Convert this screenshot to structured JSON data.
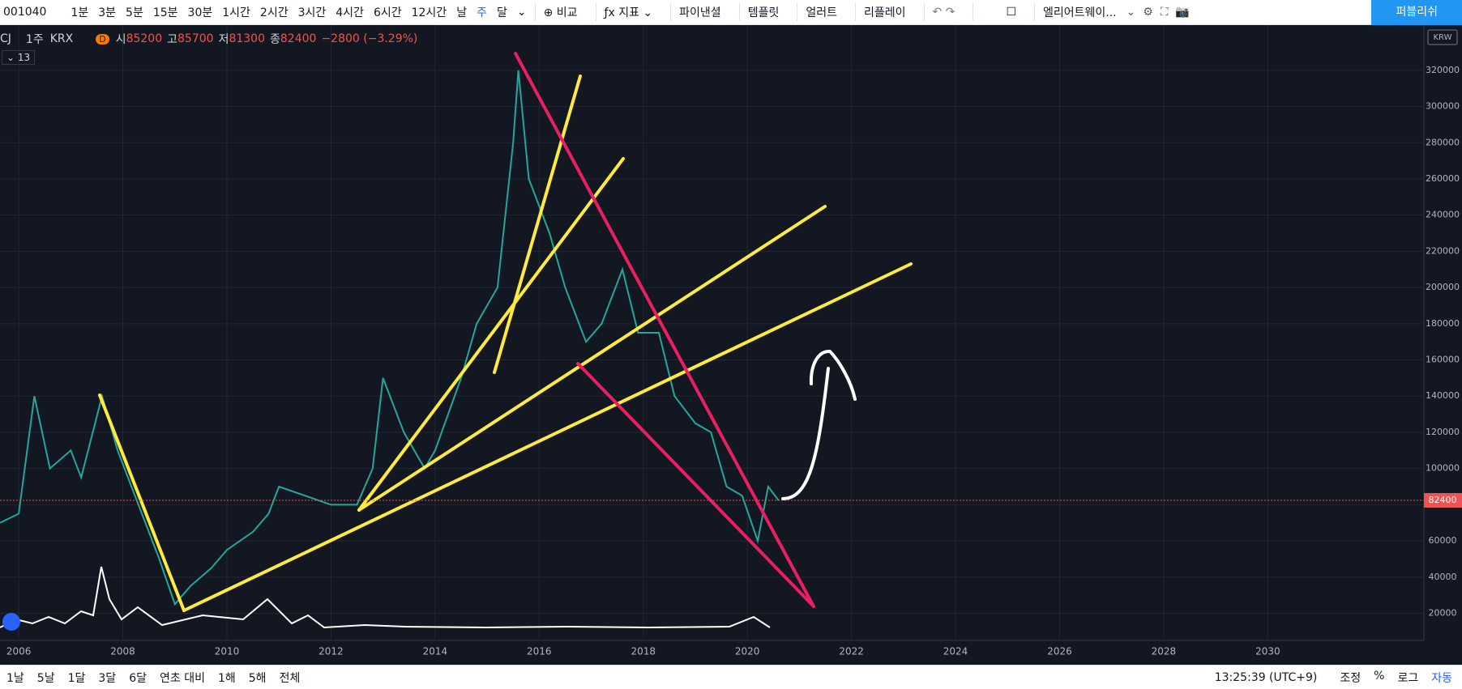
{
  "toolbar": {
    "symbol": "001040",
    "intervals": [
      "1분",
      "3분",
      "5분",
      "15분",
      "30분",
      "1시간",
      "2시간",
      "3시간",
      "4시간",
      "6시간",
      "12시간",
      "날",
      "주",
      "달"
    ],
    "compare": "비교",
    "indicators": "지표",
    "financials": "파이낸셜",
    "templates": "템플릿",
    "alert": "얼러트",
    "replay": "리플레이",
    "layout": "엘리어트웨이...",
    "publish": "퍼블리쉬"
  },
  "legend": {
    "symbol": "CJ",
    "interval": "1주",
    "exchange": "KRX",
    "badge": "D",
    "open_label": "시",
    "open": 85200,
    "high_label": "고",
    "high": 85700,
    "low_label": "저",
    "low": 81300,
    "close_label": "종",
    "close": 82400,
    "change": "−2800 (−3.29%)",
    "collapsed_count": 13
  },
  "chart_data": {
    "type": "line",
    "currency": "KRW",
    "color": "#26a69a",
    "x": [
      2005.64,
      2006.0,
      2006.3,
      2006.6,
      2007.0,
      2007.2,
      2007.6,
      2007.9,
      2008.3,
      2008.7,
      2009.0,
      2009.3,
      2009.7,
      2010.0,
      2010.5,
      2010.8,
      2011.0,
      2011.5,
      2012.0,
      2012.5,
      2012.8,
      2013.0,
      2013.4,
      2013.8,
      2014.0,
      2014.5,
      2014.8,
      2015.2,
      2015.5,
      2015.6,
      2015.8,
      2016.2,
      2016.5,
      2016.9,
      2017.2,
      2017.6,
      2017.9,
      2018.3,
      2018.6,
      2019.0,
      2019.3,
      2019.6,
      2019.9,
      2020.2,
      2020.4,
      2020.6
    ],
    "values": [
      70000,
      75000,
      140000,
      100000,
      110000,
      95000,
      140000,
      110000,
      80000,
      50000,
      25000,
      35000,
      45000,
      55000,
      65000,
      75000,
      90000,
      85000,
      80000,
      80000,
      100000,
      150000,
      120000,
      100000,
      110000,
      150000,
      180000,
      200000,
      280000,
      320000,
      260000,
      230000,
      200000,
      170000,
      180000,
      210000,
      175000,
      175000,
      140000,
      125000,
      120000,
      90000,
      85000,
      60000,
      90000,
      82400
    ],
    "xlim": [
      2005.64,
      2033
    ],
    "xticks": [
      2006,
      2008,
      2010,
      2012,
      2014,
      2016,
      2018,
      2020,
      2022,
      2024,
      2026,
      2028,
      2030
    ],
    "ylim": [
      5000,
      345000
    ],
    "yticks": [
      20000,
      40000,
      60000,
      80000,
      100000,
      120000,
      140000,
      160000,
      180000,
      200000,
      220000,
      240000,
      260000,
      280000,
      300000,
      320000
    ],
    "grid": true
  },
  "bottom": {
    "ranges": [
      "1날",
      "5날",
      "1달",
      "3달",
      "6달",
      "연초 대비",
      "1해",
      "5해",
      "전체"
    ],
    "time": "13:25:39 (UTC+9)",
    "options": [
      "조정",
      "%",
      "로그",
      "자동"
    ]
  }
}
